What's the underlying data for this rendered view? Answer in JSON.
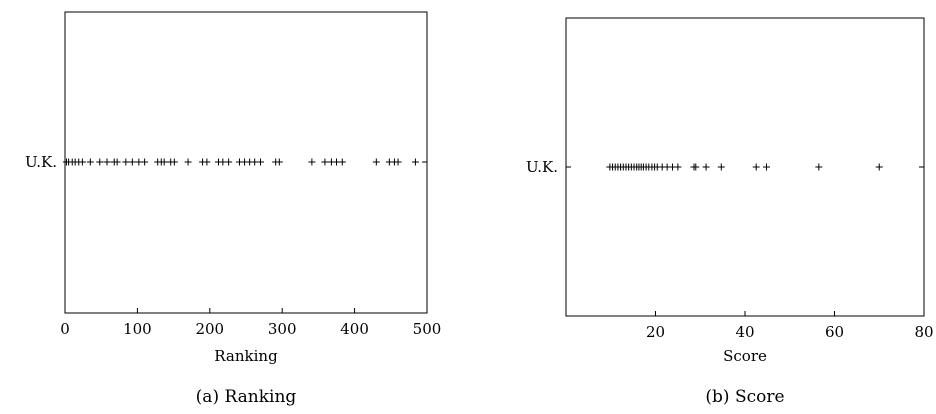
{
  "chart_data": [
    {
      "type": "scatter",
      "category_label": "U.K.",
      "xlabel": "Ranking",
      "caption": "(a) Ranking",
      "xlim": [
        0,
        500
      ],
      "xticks": [
        "0",
        "100",
        "200",
        "300",
        "400",
        "500"
      ],
      "xtick_values": [
        0,
        100,
        200,
        300,
        400,
        500
      ],
      "grid": false,
      "values": [
        2,
        5,
        10,
        14,
        19,
        24,
        35,
        48,
        58,
        68,
        72,
        84,
        93,
        102,
        110,
        128,
        133,
        137,
        146,
        151,
        170,
        190,
        196,
        212,
        218,
        226,
        241,
        248,
        255,
        262,
        270,
        291,
        296,
        341,
        359,
        368,
        375,
        383,
        430,
        448,
        455,
        460,
        484
      ]
    },
    {
      "type": "scatter",
      "category_label": "U.K.",
      "xlabel": "Score",
      "caption": "(b) Score",
      "xlim": [
        0,
        80
      ],
      "xticks": [
        "20",
        "40",
        "60",
        "80"
      ],
      "xtick_values": [
        20,
        40,
        60,
        80
      ],
      "grid": false,
      "values": [
        9.8,
        10.4,
        11.0,
        11.6,
        12.2,
        12.8,
        13.4,
        14.0,
        14.6,
        15.2,
        15.8,
        16.3,
        16.8,
        17.3,
        17.9,
        18.5,
        19.2,
        19.8,
        20.4,
        21.5,
        22.6,
        23.8,
        25.0,
        28.6,
        29.0,
        31.3,
        34.7,
        42.5,
        44.8,
        56.5,
        70.0
      ]
    }
  ]
}
